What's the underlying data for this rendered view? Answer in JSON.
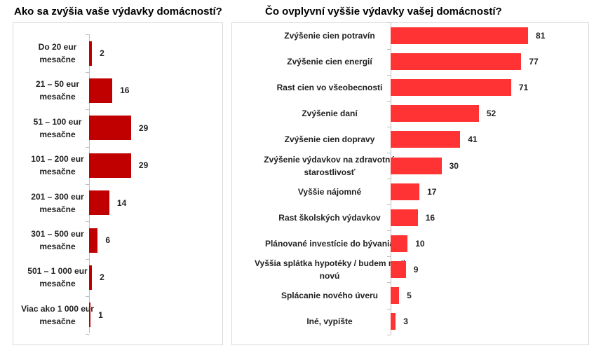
{
  "chart_data": [
    {
      "type": "bar",
      "orientation": "horizontal",
      "title": "Ako sa zvýšia vaše výdavky domácností?",
      "categories": [
        "Do 20 eur mesačne",
        "21 – 50 eur mesačne",
        "51 – 100 eur mesačne",
        "101 – 200 eur mesačne",
        "201 – 300 eur mesačne",
        "301 – 500 eur mesačne",
        "501 – 1 000 eur mesačne",
        "Viac ako 1 000 eur mesačne"
      ],
      "values": [
        2,
        16,
        29,
        29,
        14,
        6,
        2,
        1
      ],
      "color": "#c00000",
      "xlim": [
        0,
        90
      ]
    },
    {
      "type": "bar",
      "orientation": "horizontal",
      "title": "Čo ovplyvní vyššie výdavky vašej domácností?",
      "categories": [
        "Zvýšenie cien potravín",
        "Zvýšenie cien energií",
        "Rast cien vo všeobecnosti",
        "Zvýšenie daní",
        "Zvýšenie cien dopravy",
        "Zvýšenie výdavkov na zdravotnú starostlivosť",
        "Vyššie nájomné",
        "Rast školských výdavkov",
        "Plánované investície do bývania",
        "Vyššia splátka hypotéky / budem mať novú",
        "Splácanie nového úveru",
        "Iné, vypíšte"
      ],
      "values": [
        81,
        77,
        71,
        52,
        41,
        30,
        17,
        16,
        10,
        9,
        5,
        3
      ],
      "color": "#ff3333",
      "xlim": [
        0,
        100
      ]
    }
  ]
}
